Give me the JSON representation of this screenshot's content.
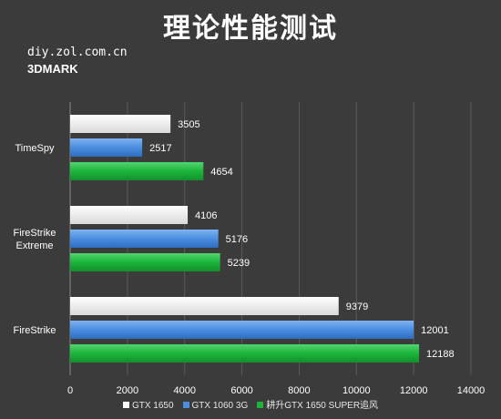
{
  "chart_data": {
    "type": "bar",
    "orientation": "horizontal",
    "title": "理论性能测试",
    "subtitle": "diy.zol.com.cn",
    "subtitle2": "3DMARK",
    "categories": [
      "TimeSpy",
      "FireStrike Extreme",
      "FireStrike"
    ],
    "category_lines": [
      [
        "TimeSpy"
      ],
      [
        "FireStrike",
        "Extreme"
      ],
      [
        "FireStrike"
      ]
    ],
    "series": [
      {
        "name": "GTX 1650",
        "color": "#ffffff",
        "values": [
          3505,
          4106,
          9379
        ]
      },
      {
        "name": "GTX 1060 3G",
        "color": "#4a8ee0",
        "values": [
          2517,
          5176,
          12001
        ]
      },
      {
        "name": "耕升GTX 1650 SUPER追风",
        "color": "#1bb53b",
        "values": [
          4654,
          5239,
          12188
        ]
      }
    ],
    "xlim": [
      0,
      14000
    ],
    "xticks": [
      0,
      2000,
      4000,
      6000,
      8000,
      10000,
      12000,
      14000
    ],
    "grid": true,
    "legend_position": "bottom"
  }
}
